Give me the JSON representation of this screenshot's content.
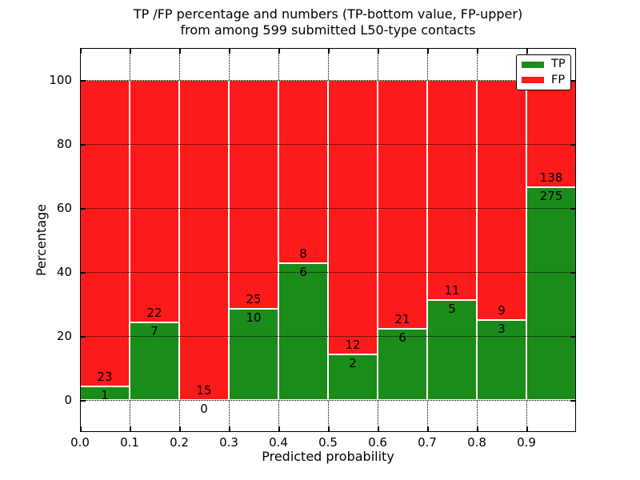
{
  "chart_data": {
    "type": "bar",
    "stacked": true,
    "title_line1": "TP /FP percentage and numbers (TP-bottom value, FP-upper)",
    "title_line2": "from among 599 submitted L50-type contacts",
    "xlabel": "Predicted probability",
    "ylabel": "Percentage",
    "total_contacts": 599,
    "xlim": [
      0.0,
      1.0
    ],
    "ylim": [
      -10,
      110
    ],
    "x_tick_labels": [
      "0.0",
      "0.1",
      "0.2",
      "0.3",
      "0.4",
      "0.5",
      "0.6",
      "0.7",
      "0.8",
      "0.9"
    ],
    "x_tick_values": [
      0.0,
      0.1,
      0.2,
      0.3,
      0.4,
      0.5,
      0.6,
      0.7,
      0.8,
      0.9
    ],
    "y_tick_labels": [
      "0",
      "20",
      "40",
      "60",
      "80",
      "100"
    ],
    "y_tick_values": [
      0,
      20,
      40,
      60,
      80,
      100
    ],
    "grid": "dotted",
    "bins": [
      {
        "range": [
          0.0,
          0.1
        ],
        "tp": 1,
        "fp": 23,
        "tp_pct": 4.17
      },
      {
        "range": [
          0.1,
          0.2
        ],
        "tp": 7,
        "fp": 22,
        "tp_pct": 24.14
      },
      {
        "range": [
          0.2,
          0.3
        ],
        "tp": 0,
        "fp": 15,
        "tp_pct": 0.0
      },
      {
        "range": [
          0.3,
          0.4
        ],
        "tp": 10,
        "fp": 25,
        "tp_pct": 28.57
      },
      {
        "range": [
          0.4,
          0.5
        ],
        "tp": 6,
        "fp": 8,
        "tp_pct": 42.86
      },
      {
        "range": [
          0.5,
          0.6
        ],
        "tp": 2,
        "fp": 12,
        "tp_pct": 14.29
      },
      {
        "range": [
          0.6,
          0.7
        ],
        "tp": 6,
        "fp": 21,
        "tp_pct": 22.22
      },
      {
        "range": [
          0.7,
          0.8
        ],
        "tp": 5,
        "fp": 11,
        "tp_pct": 31.25
      },
      {
        "range": [
          0.8,
          0.9
        ],
        "tp": 3,
        "fp": 9,
        "tp_pct": 25.0
      },
      {
        "range": [
          0.9,
          1.0
        ],
        "tp": 275,
        "fp": 138,
        "tp_pct": 66.59
      }
    ],
    "legend": {
      "position": "upper-right",
      "entries": [
        {
          "label": "TP",
          "color": "#1a8c1a"
        },
        {
          "label": "FP",
          "color": "#fd1a1a"
        }
      ]
    },
    "colors": {
      "tp": "#1a8c1a",
      "fp": "#fd1a1a",
      "grid": "#000000",
      "frame": "#000000",
      "bar_edge": "#ffffff",
      "background": "#ffffff",
      "text": "#000000"
    }
  }
}
